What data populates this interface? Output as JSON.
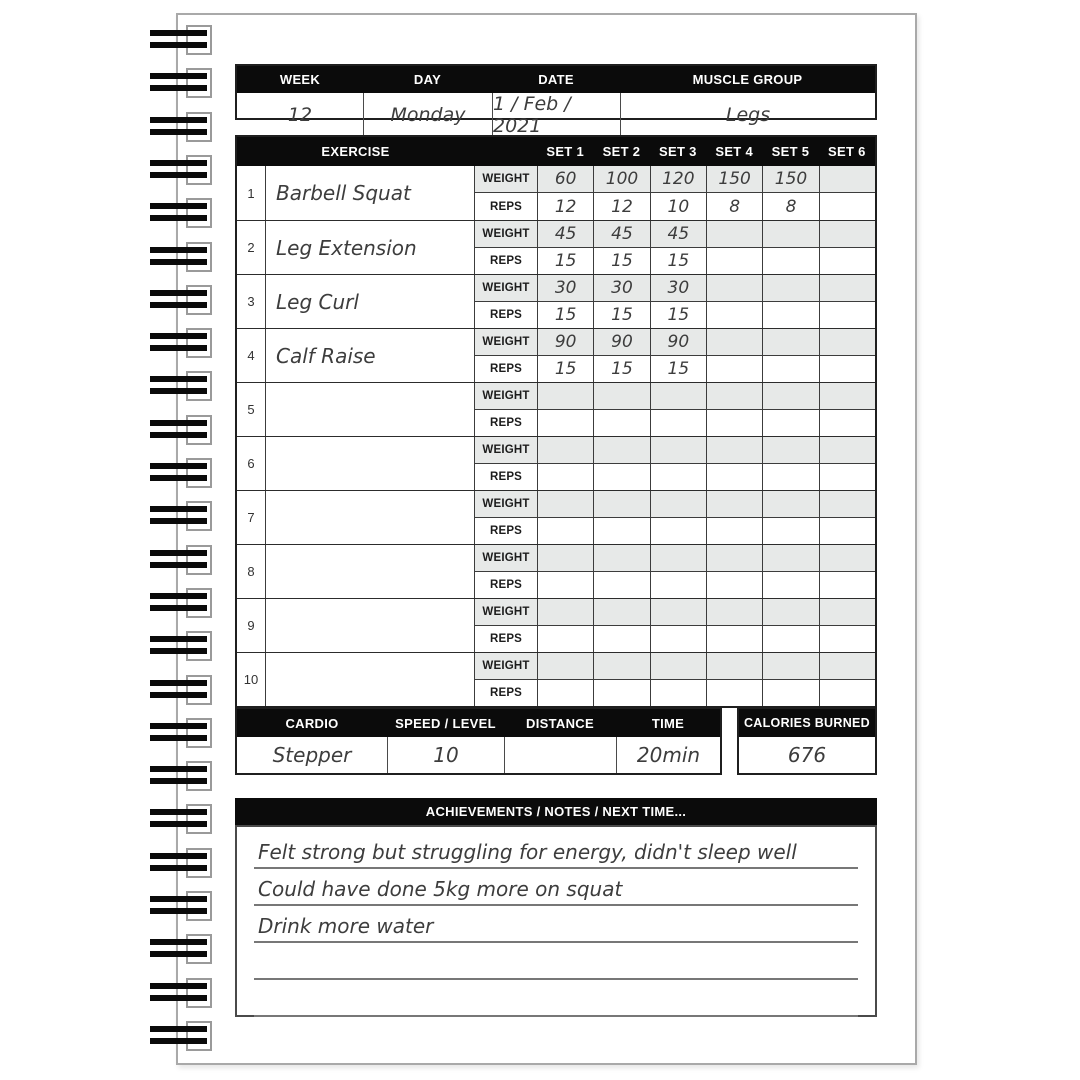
{
  "info": {
    "headers": [
      "WEEK",
      "DAY",
      "DATE",
      "MUSCLE GROUP"
    ],
    "values": [
      "12",
      "Monday",
      "1 / Feb / 2021",
      "Legs"
    ]
  },
  "exercise_table": {
    "title": "EXERCISE",
    "set_headers": [
      "SET 1",
      "SET 2",
      "SET 3",
      "SET 4",
      "SET 5",
      "SET 6"
    ],
    "weight_label": "WEIGHT",
    "reps_label": "REPS",
    "rows": [
      {
        "num": "1",
        "name": "Barbell Squat",
        "weight": [
          "60",
          "100",
          "120",
          "150",
          "150",
          ""
        ],
        "reps": [
          "12",
          "12",
          "10",
          "8",
          "8",
          ""
        ]
      },
      {
        "num": "2",
        "name": "Leg Extension",
        "weight": [
          "45",
          "45",
          "45",
          "",
          "",
          ""
        ],
        "reps": [
          "15",
          "15",
          "15",
          "",
          "",
          ""
        ]
      },
      {
        "num": "3",
        "name": "Leg Curl",
        "weight": [
          "30",
          "30",
          "30",
          "",
          "",
          ""
        ],
        "reps": [
          "15",
          "15",
          "15",
          "",
          "",
          ""
        ]
      },
      {
        "num": "4",
        "name": "Calf Raise",
        "weight": [
          "90",
          "90",
          "90",
          "",
          "",
          ""
        ],
        "reps": [
          "15",
          "15",
          "15",
          "",
          "",
          ""
        ]
      },
      {
        "num": "5",
        "name": "",
        "weight": [
          "",
          "",
          "",
          "",
          "",
          ""
        ],
        "reps": [
          "",
          "",
          "",
          "",
          "",
          ""
        ]
      },
      {
        "num": "6",
        "name": "",
        "weight": [
          "",
          "",
          "",
          "",
          "",
          ""
        ],
        "reps": [
          "",
          "",
          "",
          "",
          "",
          ""
        ]
      },
      {
        "num": "7",
        "name": "",
        "weight": [
          "",
          "",
          "",
          "",
          "",
          ""
        ],
        "reps": [
          "",
          "",
          "",
          "",
          "",
          ""
        ]
      },
      {
        "num": "8",
        "name": "",
        "weight": [
          "",
          "",
          "",
          "",
          "",
          ""
        ],
        "reps": [
          "",
          "",
          "",
          "",
          "",
          ""
        ]
      },
      {
        "num": "9",
        "name": "",
        "weight": [
          "",
          "",
          "",
          "",
          "",
          ""
        ],
        "reps": [
          "",
          "",
          "",
          "",
          "",
          ""
        ]
      },
      {
        "num": "10",
        "name": "",
        "weight": [
          "",
          "",
          "",
          "",
          "",
          ""
        ],
        "reps": [
          "",
          "",
          "",
          "",
          "",
          ""
        ]
      }
    ]
  },
  "cardio": {
    "headers": [
      "CARDIO",
      "SPEED / LEVEL",
      "DISTANCE",
      "TIME"
    ],
    "values": [
      "Stepper",
      "10",
      "",
      "20min"
    ]
  },
  "calories": {
    "header": "CALORIES BURNED",
    "value": "676"
  },
  "notes": {
    "header": "ACHIEVEMENTS / NOTES / NEXT TIME...",
    "lines": [
      "Felt strong but struggling for energy, didn't sleep well",
      "Could have done 5kg more on squat",
      "Drink more water",
      "",
      ""
    ]
  },
  "colors": {
    "header_bg": "#0b0b0b",
    "header_text": "#ffffff",
    "shaded_cell": "#e7e9e8",
    "border_dark": "#1f1f1f",
    "handwriting": "#3d3d3d",
    "page_border": "#a9a9a9",
    "rule_line": "#777777"
  }
}
